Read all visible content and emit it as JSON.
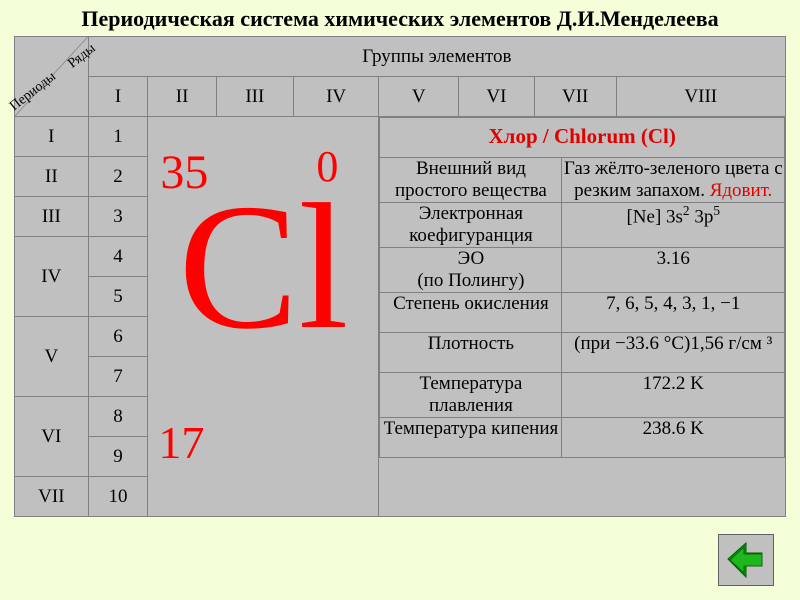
{
  "title": "Периодическая система химических элементов Д.И.Менделеева",
  "headers": {
    "periods": "Периоды",
    "rows": "Ряды",
    "groups_title": "Группы элементов",
    "groups": [
      "I",
      "II",
      "III",
      "IV",
      "V",
      "VI",
      "VII",
      "VIII"
    ]
  },
  "periods": [
    "I",
    "II",
    "III",
    "IV",
    "V",
    "VI",
    "VII"
  ],
  "period_rows": [
    "1",
    "2",
    "3",
    "4",
    "5",
    "6",
    "7",
    "8",
    "9",
    "10"
  ],
  "element": {
    "mass": "35",
    "charge": "0",
    "symbol": "Cl",
    "atomic_number": "17",
    "symbol_color": "#ff0000"
  },
  "info": {
    "header": "Хлор / Chlorum (Cl)",
    "rows": [
      {
        "label": "Внешний вид простого вещества",
        "value": "Газ жёлто-зеленого цвета с резким запахом.",
        "danger": "Ядовит."
      },
      {
        "label": "Электронная коефигуранция",
        "value_html": "[Ne] 3s<sup>2</sup> 3p<sup>5</sup>"
      },
      {
        "label": " ЭО\n(по Полингу)",
        "value": "3.16"
      },
      {
        "label": "Степень окисления",
        "value": "7, 6, 5, 4, 3, 1, −1"
      },
      {
        "label": "Плотность",
        "value": "(при −33.6 °C)1,56 г/см ³"
      },
      {
        "label": "Температура плавления",
        "value": "172.2 K"
      },
      {
        "label": "Температура кипения",
        "value": "238.6 K"
      }
    ]
  },
  "colors": {
    "page_bg": "#f4fed8",
    "cell_bg": "#c0c0c0",
    "border": "#808080",
    "accent": "#ff0000",
    "header_red": "#e00000",
    "nav_arrow": "#00a000"
  }
}
